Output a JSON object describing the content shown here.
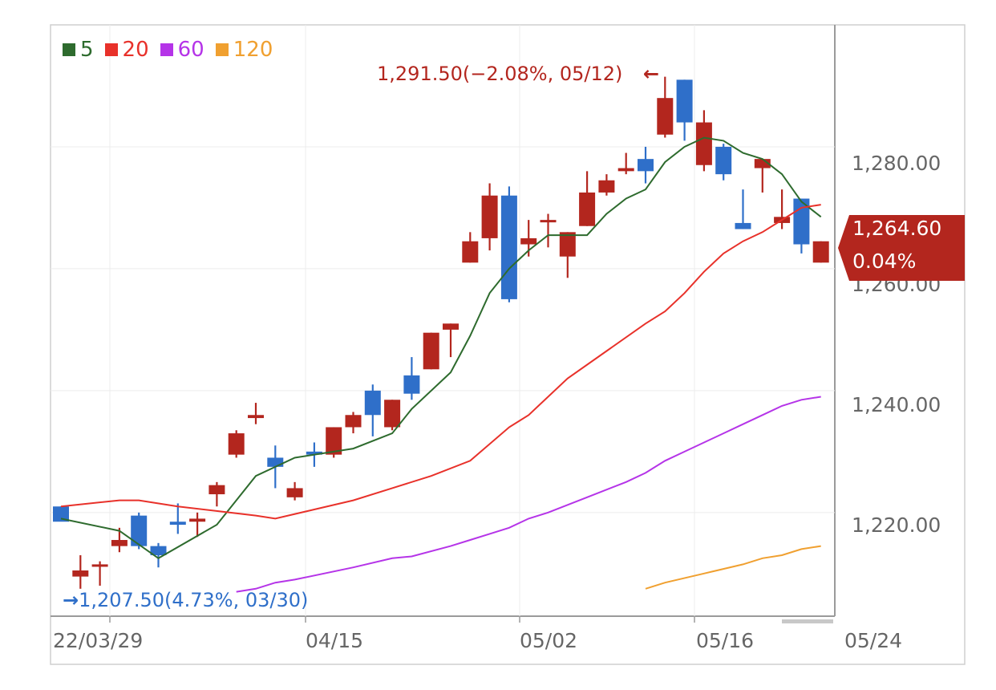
{
  "legend": [
    {
      "label": "5",
      "color": "#2e6b2e"
    },
    {
      "label": "20",
      "color": "#e8312a"
    },
    {
      "label": "60",
      "color": "#b534e8"
    },
    {
      "label": "120",
      "color": "#f0a030"
    }
  ],
  "annotations": {
    "high": "1,291.50(−2.08%, 05/12)",
    "high_arrow": "←",
    "low": "1,207.50(4.73%, 03/30)",
    "low_arrow": "→"
  },
  "current": {
    "price": "1,264.60",
    "change": "0.04%"
  },
  "colors": {
    "up": "#b3261e",
    "down": "#2f6fc9",
    "tag": "#b3261e"
  },
  "chart_data": {
    "type": "candlestick",
    "y_ticks": [
      "1,280.00",
      "1,260.00",
      "1,240.00",
      "1,220.00"
    ],
    "x_ticks": [
      "22/03/29",
      "04/15",
      "05/02",
      "05/16",
      "05/24"
    ],
    "ylim": [
      1203,
      1300
    ],
    "candles": [
      {
        "o": 1221,
        "h": 1221,
        "l": 1219,
        "c": 1218.5
      },
      {
        "o": 1209.5,
        "h": 1213,
        "l": 1207.5,
        "c": 1210.5
      },
      {
        "o": 1211.5,
        "h": 1212,
        "l": 1208,
        "c": 1211.5
      },
      {
        "o": 1214.5,
        "h": 1217.5,
        "l": 1213.5,
        "c": 1215.5
      },
      {
        "o": 1219.5,
        "h": 1220,
        "l": 1214,
        "c": 1214.5
      },
      {
        "o": 1214.5,
        "h": 1215,
        "l": 1211,
        "c": 1213
      },
      {
        "o": 1218.5,
        "h": 1221.5,
        "l": 1216.5,
        "c": 1218
      },
      {
        "o": 1218.5,
        "h": 1220,
        "l": 1216,
        "c": 1219
      },
      {
        "o": 1223,
        "h": 1225,
        "l": 1221,
        "c": 1224.5
      },
      {
        "o": 1229.5,
        "h": 1233.5,
        "l": 1229,
        "c": 1233
      },
      {
        "o": 1235.5,
        "h": 1238,
        "l": 1234.5,
        "c": 1236
      },
      {
        "o": 1229,
        "h": 1231,
        "l": 1224,
        "c": 1227.5
      },
      {
        "o": 1222.5,
        "h": 1225,
        "l": 1222,
        "c": 1224
      },
      {
        "o": 1230,
        "h": 1231.5,
        "l": 1227.5,
        "c": 1229.5
      },
      {
        "o": 1229.5,
        "h": 1234,
        "l": 1229,
        "c": 1234
      },
      {
        "o": 1234,
        "h": 1236.5,
        "l": 1233,
        "c": 1236
      },
      {
        "o": 1240,
        "h": 1241,
        "l": 1232.5,
        "c": 1236
      },
      {
        "o": 1234,
        "h": 1238.5,
        "l": 1233.5,
        "c": 1238.5
      },
      {
        "o": 1242.5,
        "h": 1245.5,
        "l": 1238.5,
        "c": 1239.5
      },
      {
        "o": 1243.5,
        "h": 1249.5,
        "l": 1243.5,
        "c": 1249.5
      },
      {
        "o": 1250,
        "h": 1251,
        "l": 1245.5,
        "c": 1251
      },
      {
        "o": 1261,
        "h": 1266,
        "l": 1261,
        "c": 1264.5
      },
      {
        "o": 1265,
        "h": 1274,
        "l": 1263,
        "c": 1272
      },
      {
        "o": 1272,
        "h": 1273.5,
        "l": 1254.5,
        "c": 1255
      },
      {
        "o": 1264,
        "h": 1268,
        "l": 1262,
        "c": 1265
      },
      {
        "o": 1268,
        "h": 1269,
        "l": 1263.5,
        "c": 1268
      },
      {
        "o": 1262,
        "h": 1266,
        "l": 1258.5,
        "c": 1266
      },
      {
        "o": 1267,
        "h": 1276,
        "l": 1267,
        "c": 1272.5
      },
      {
        "o": 1272.5,
        "h": 1275.5,
        "l": 1272,
        "c": 1274.5
      },
      {
        "o": 1276,
        "h": 1279,
        "l": 1275.5,
        "c": 1276.5
      },
      {
        "o": 1278,
        "h": 1280,
        "l": 1274,
        "c": 1276
      },
      {
        "o": 1282,
        "h": 1291.5,
        "l": 1281.5,
        "c": 1288
      },
      {
        "o": 1291,
        "h": 1291,
        "l": 1281,
        "c": 1284
      },
      {
        "o": 1277,
        "h": 1286,
        "l": 1276,
        "c": 1284
      },
      {
        "o": 1280,
        "h": 1280.5,
        "l": 1274.5,
        "c": 1275.5
      },
      {
        "o": 1267.5,
        "h": 1273,
        "l": 1266.5,
        "c": 1266.5
      },
      {
        "o": 1276.5,
        "h": 1278,
        "l": 1272.5,
        "c": 1278
      },
      {
        "o": 1267.5,
        "h": 1273,
        "l": 1266.5,
        "c": 1268.5
      },
      {
        "o": 1271.5,
        "h": 1271.5,
        "l": 1262.5,
        "c": 1264
      },
      {
        "o": 1261,
        "h": 1264.5,
        "l": 1261,
        "c": 1264.5
      }
    ],
    "series": [
      {
        "name": "5",
        "color": "#2e6b2e",
        "points": [
          [
            0,
            1219
          ],
          [
            3,
            1217
          ],
          [
            5,
            1212.5
          ],
          [
            8,
            1218
          ],
          [
            10,
            1226
          ],
          [
            12,
            1229
          ],
          [
            14,
            1230
          ],
          [
            15,
            1230.5
          ],
          [
            17,
            1233
          ],
          [
            18,
            1237
          ],
          [
            20,
            1243
          ],
          [
            21,
            1249
          ],
          [
            22,
            1256
          ],
          [
            23,
            1260
          ],
          [
            24,
            1263
          ],
          [
            25,
            1265.5
          ],
          [
            27,
            1265.5
          ],
          [
            28,
            1269
          ],
          [
            29,
            1271.5
          ],
          [
            30,
            1273
          ],
          [
            31,
            1277.5
          ],
          [
            32,
            1280
          ],
          [
            33,
            1281.5
          ],
          [
            34,
            1281
          ],
          [
            35,
            1279
          ],
          [
            36,
            1278
          ],
          [
            37,
            1275.5
          ],
          [
            38,
            1271
          ],
          [
            39,
            1268.5
          ]
        ]
      },
      {
        "name": "20",
        "color": "#e8312a",
        "points": [
          [
            0,
            1221
          ],
          [
            3,
            1222
          ],
          [
            4,
            1222
          ],
          [
            6,
            1221
          ],
          [
            10,
            1219.5
          ],
          [
            11,
            1219
          ],
          [
            13,
            1220.5
          ],
          [
            15,
            1222
          ],
          [
            17,
            1224
          ],
          [
            19,
            1226
          ],
          [
            21,
            1228.5
          ],
          [
            23,
            1234
          ],
          [
            24,
            1236
          ],
          [
            26,
            1242
          ],
          [
            28,
            1246.5
          ],
          [
            30,
            1251
          ],
          [
            31,
            1253
          ],
          [
            32,
            1256
          ],
          [
            33,
            1259.5
          ],
          [
            34,
            1262.5
          ],
          [
            35,
            1264.5
          ],
          [
            36,
            1266
          ],
          [
            37,
            1268
          ],
          [
            38,
            1270
          ],
          [
            39,
            1270.5
          ]
        ]
      },
      {
        "name": "60",
        "color": "#b534e8",
        "points": [
          [
            9,
            1207
          ],
          [
            10,
            1207.5
          ],
          [
            11,
            1208.5
          ],
          [
            12,
            1209
          ],
          [
            15,
            1211
          ],
          [
            17,
            1212.5
          ],
          [
            18,
            1212.8
          ],
          [
            20,
            1214.5
          ],
          [
            21,
            1215.5
          ],
          [
            22,
            1216.5
          ],
          [
            23,
            1217.5
          ],
          [
            24,
            1219
          ],
          [
            25,
            1220
          ],
          [
            27,
            1222.5
          ],
          [
            29,
            1225
          ],
          [
            30,
            1226.5
          ],
          [
            31,
            1228.5
          ],
          [
            32,
            1230
          ],
          [
            33,
            1231.5
          ],
          [
            34,
            1233
          ],
          [
            35,
            1234.5
          ],
          [
            36,
            1236
          ],
          [
            37,
            1237.5
          ],
          [
            38,
            1238.5
          ],
          [
            39,
            1239
          ]
        ]
      },
      {
        "name": "120",
        "color": "#f0a030",
        "points": [
          [
            30,
            1207.5
          ],
          [
            31,
            1208.5
          ],
          [
            33,
            1210
          ],
          [
            35,
            1211.5
          ],
          [
            36,
            1212.5
          ],
          [
            37,
            1213
          ],
          [
            38,
            1214
          ],
          [
            39,
            1214.5
          ]
        ]
      }
    ]
  }
}
